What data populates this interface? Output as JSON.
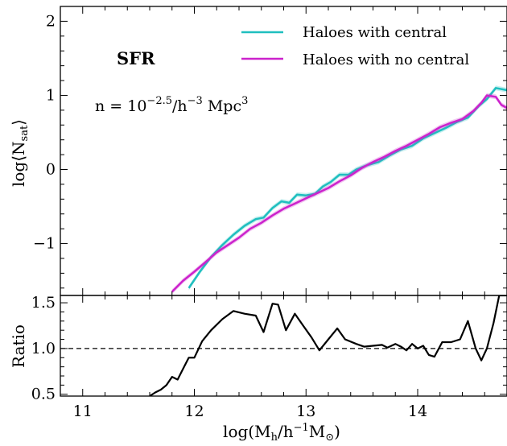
{
  "chart_data": [
    {
      "type": "line",
      "panel": "top",
      "xlabel": "",
      "ylabel": "log⟨N",
      "ylabel_sub": "sat",
      "ylabel_close": "⟩",
      "xlim": [
        10.8,
        14.8
      ],
      "ylim": [
        -1.7,
        2.2
      ],
      "yticks": [
        -1,
        0,
        1,
        2
      ],
      "ytick_labels": [
        "−1",
        "0",
        "1",
        "2"
      ],
      "legend_position": "top-right",
      "annotations": {
        "label": "SFR",
        "density_prefix": "n = 10",
        "density_exp": "−2.5",
        "density_mid": "/h",
        "density_exp2": "−3",
        "density_suffix": " Mpc",
        "density_exp3": "3"
      },
      "series": [
        {
          "name": "Haloes with central",
          "color": "#1fbfbf",
          "x": [
            11.95,
            12.05,
            12.15,
            12.25,
            12.35,
            12.45,
            12.55,
            12.62,
            12.7,
            12.78,
            12.85,
            12.92,
            13.0,
            13.08,
            13.15,
            13.22,
            13.3,
            13.38,
            13.45,
            13.55,
            13.65,
            13.75,
            13.85,
            13.95,
            14.05,
            14.15,
            14.25,
            14.35,
            14.45,
            14.55,
            14.62,
            14.7,
            14.8
          ],
          "y": [
            -1.6,
            -1.38,
            -1.18,
            -1.02,
            -0.88,
            -0.76,
            -0.67,
            -0.65,
            -0.52,
            -0.43,
            -0.45,
            -0.34,
            -0.35,
            -0.33,
            -0.23,
            -0.17,
            -0.07,
            -0.07,
            0.0,
            0.06,
            0.1,
            0.19,
            0.27,
            0.32,
            0.42,
            0.49,
            0.56,
            0.64,
            0.7,
            0.86,
            0.95,
            1.1,
            1.07
          ]
        },
        {
          "name": "Haloes with no central",
          "color": "#cc22cc",
          "x": [
            11.8,
            11.9,
            12.0,
            12.1,
            12.2,
            12.3,
            12.4,
            12.5,
            12.6,
            12.7,
            12.8,
            12.9,
            13.0,
            13.1,
            13.2,
            13.3,
            13.4,
            13.5,
            13.6,
            13.7,
            13.8,
            13.9,
            14.0,
            14.1,
            14.2,
            14.3,
            14.4,
            14.5,
            14.57,
            14.62,
            14.7,
            14.75,
            14.8
          ],
          "y": [
            -1.65,
            -1.5,
            -1.38,
            -1.25,
            -1.12,
            -1.02,
            -0.92,
            -0.8,
            -0.72,
            -0.62,
            -0.53,
            -0.46,
            -0.39,
            -0.32,
            -0.25,
            -0.16,
            -0.08,
            0.02,
            0.1,
            0.17,
            0.25,
            0.32,
            0.4,
            0.48,
            0.57,
            0.63,
            0.68,
            0.79,
            0.9,
            1.0,
            0.98,
            0.87,
            0.83
          ]
        }
      ]
    },
    {
      "type": "line",
      "panel": "bottom",
      "xlabel": "log(M",
      "xlabel_sub": "h",
      "xlabel_mid": "/h",
      "xlabel_sup": "−1",
      "xlabel_m": "M",
      "xlabel_sub2": "⊙",
      "xlabel_close": ")",
      "ylabel": "Ratio",
      "xlim": [
        10.8,
        14.8
      ],
      "ylim": [
        0.48,
        1.58
      ],
      "xticks": [
        11,
        12,
        13,
        14
      ],
      "xtick_labels": [
        "11",
        "12",
        "13",
        "14"
      ],
      "yticks": [
        0.5,
        1.0,
        1.5
      ],
      "ytick_labels": [
        "0.5",
        "1.0",
        "1.5"
      ],
      "reference_line": 1.0,
      "series": [
        {
          "color": "#000000",
          "x": [
            11.6,
            11.65,
            11.7,
            11.75,
            11.8,
            11.85,
            11.9,
            11.95,
            12.0,
            12.07,
            12.15,
            12.25,
            12.35,
            12.45,
            12.55,
            12.62,
            12.7,
            12.75,
            12.82,
            12.9,
            12.98,
            13.05,
            13.12,
            13.2,
            13.28,
            13.35,
            13.45,
            13.52,
            13.6,
            13.68,
            13.73,
            13.8,
            13.85,
            13.9,
            13.95,
            14.0,
            14.05,
            14.1,
            14.15,
            14.22,
            14.3,
            14.38,
            14.45,
            14.52,
            14.57,
            14.62,
            14.68,
            14.73,
            14.78,
            14.8
          ],
          "y": [
            0.48,
            0.52,
            0.55,
            0.6,
            0.69,
            0.66,
            0.78,
            0.9,
            0.9,
            1.08,
            1.2,
            1.32,
            1.41,
            1.38,
            1.36,
            1.18,
            1.49,
            1.48,
            1.2,
            1.38,
            1.24,
            1.12,
            0.98,
            1.1,
            1.22,
            1.1,
            1.05,
            1.02,
            1.03,
            1.04,
            1.01,
            1.05,
            1.02,
            0.98,
            1.05,
            1.0,
            1.03,
            0.93,
            0.91,
            1.07,
            1.07,
            1.1,
            1.3,
            1.0,
            0.87,
            1.0,
            1.28,
            1.58,
            1.58,
            1.58
          ]
        }
      ]
    }
  ]
}
